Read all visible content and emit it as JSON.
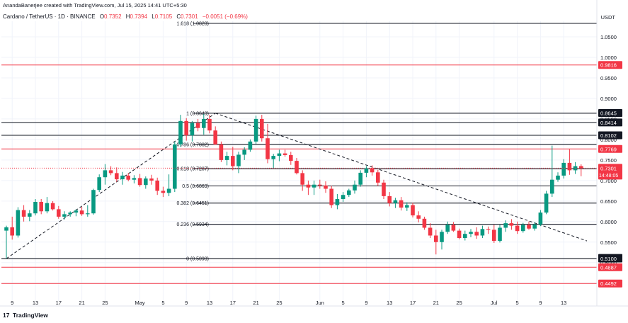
{
  "header": {
    "credit": "AnandaBanerjee created with TradingView.com, Jul 15, 2025 14:41 UTC+5:30",
    "symbol": "Cardano / TetherUS · 1D · BINANCE",
    "ohlc": [
      {
        "label": "O",
        "value": "0.7352"
      },
      {
        "label": "H",
        "value": "0.7394"
      },
      {
        "label": "L",
        "value": "0.7105"
      },
      {
        "label": "C",
        "value": "0.7301"
      },
      {
        "label": "",
        "value": "−0.0051 (−0.69%)"
      }
    ],
    "currency": "USDT"
  },
  "brand": {
    "name": "TradingView",
    "logo_glyph": "17"
  },
  "chart_data": {
    "type": "candlestick",
    "symbol": "ADA/USDT",
    "ylim": [
      0.42,
      1.1
    ],
    "colors": {
      "up": "#089981",
      "down": "#f23645",
      "fib_line": "#131722",
      "hline": "#f23645",
      "trend": "#131722"
    },
    "x_ticks": [
      {
        "i": 1,
        "label": "9"
      },
      {
        "i": 5,
        "label": "13"
      },
      {
        "i": 9,
        "label": "17"
      },
      {
        "i": 13,
        "label": "21"
      },
      {
        "i": 17,
        "label": "25"
      },
      {
        "i": 23,
        "label": "May"
      },
      {
        "i": 27,
        "label": "5"
      },
      {
        "i": 31,
        "label": "9"
      },
      {
        "i": 35,
        "label": "13"
      },
      {
        "i": 39,
        "label": "17"
      },
      {
        "i": 43,
        "label": "21"
      },
      {
        "i": 47,
        "label": "25"
      },
      {
        "i": 54,
        "label": "Jun"
      },
      {
        "i": 58,
        "label": "5"
      },
      {
        "i": 62,
        "label": "9"
      },
      {
        "i": 66,
        "label": "13"
      },
      {
        "i": 70,
        "label": "17"
      },
      {
        "i": 74,
        "label": "21"
      },
      {
        "i": 78,
        "label": "25"
      },
      {
        "i": 84,
        "label": "Jul"
      },
      {
        "i": 88,
        "label": "5"
      },
      {
        "i": 92,
        "label": "9"
      },
      {
        "i": 96,
        "label": "13"
      }
    ],
    "y_ticks": [
      "1.0500",
      "1.0000",
      "0.9500",
      "0.9000",
      "0.8500",
      "0.8000",
      "0.7500",
      "0.7000",
      "0.6500",
      "0.6000",
      "0.5500",
      "0.5000",
      "0.4500"
    ],
    "y_tick_values": [
      1.05,
      1.0,
      0.95,
      0.9,
      0.85,
      0.8,
      0.75,
      0.7,
      0.65,
      0.6,
      0.55,
      0.5,
      0.45
    ],
    "fib_levels": [
      {
        "label": "1.618 (1.0828)",
        "value": 1.0828
      },
      {
        "label": "1 (0.8640)",
        "value": 0.864
      },
      {
        "label": "0.786 (0.7882)",
        "value": 0.7882
      },
      {
        "label": "0.618 (0.7287)",
        "value": 0.7287
      },
      {
        "label": "0.5 (0.6869)",
        "value": 0.6869
      },
      {
        "label": "0.382 (0.6451)",
        "value": 0.6451
      },
      {
        "label": "0.236 (0.5934)",
        "value": 0.5934
      },
      {
        "label": "0 (0.5098)",
        "value": 0.5098
      }
    ],
    "horizontal_lines": [
      {
        "value": 0.9816,
        "color": "#f23645"
      },
      {
        "value": 0.8414,
        "color": "#131722"
      },
      {
        "value": 0.8102,
        "color": "#131722"
      },
      {
        "value": 0.7769,
        "color": "#f23645"
      },
      {
        "value": 0.4887,
        "color": "#f23645"
      },
      {
        "value": 0.4492,
        "color": "#f23645"
      }
    ],
    "price_labels": [
      {
        "text": "0.9816",
        "value": 0.9816,
        "bg": "#f23645",
        "fg": "#ffffff"
      },
      {
        "text": "0.8645",
        "value": 0.8645,
        "bg": "#131722",
        "fg": "#ffffff"
      },
      {
        "text": "0.8414",
        "value": 0.8414,
        "bg": "#131722",
        "fg": "#ffffff"
      },
      {
        "text": "0.8102",
        "value": 0.8102,
        "bg": "#131722",
        "fg": "#ffffff"
      },
      {
        "text": "0.7769",
        "value": 0.7769,
        "bg": "#f23645",
        "fg": "#ffffff"
      },
      {
        "text": "0.5116",
        "value": 0.5116,
        "bg": "#131722",
        "fg": "#ffffff"
      },
      {
        "text": "0.5100",
        "value": 0.51,
        "bg": "#131722",
        "fg": "#ffffff"
      },
      {
        "text": "0.4887",
        "value": 0.4887,
        "bg": "#f23645",
        "fg": "#ffffff"
      },
      {
        "text": "0.4492",
        "value": 0.4492,
        "bg": "#f23645",
        "fg": "#ffffff"
      }
    ],
    "last_price": {
      "value": 0.7301,
      "text": "0.7301",
      "countdown": "14:48:05",
      "color": "#f23645"
    },
    "trendlines": [
      {
        "from": [
          0,
          0.5098
        ],
        "to": [
          36,
          0.864
        ],
        "style": "dashed"
      },
      {
        "from": [
          36,
          0.864
        ],
        "to": [
          100,
          0.553
        ],
        "style": "dashed"
      }
    ],
    "candles": [
      {
        "o": 0.578,
        "h": 0.59,
        "l": 0.51,
        "c": 0.586
      },
      {
        "o": 0.586,
        "h": 0.612,
        "l": 0.556,
        "c": 0.566
      },
      {
        "o": 0.566,
        "h": 0.635,
        "l": 0.561,
        "c": 0.628
      },
      {
        "o": 0.628,
        "h": 0.64,
        "l": 0.6,
        "c": 0.612
      },
      {
        "o": 0.612,
        "h": 0.628,
        "l": 0.601,
        "c": 0.62
      },
      {
        "o": 0.62,
        "h": 0.655,
        "l": 0.615,
        "c": 0.648
      },
      {
        "o": 0.648,
        "h": 0.655,
        "l": 0.618,
        "c": 0.625
      },
      {
        "o": 0.625,
        "h": 0.66,
        "l": 0.62,
        "c": 0.645
      },
      {
        "o": 0.645,
        "h": 0.65,
        "l": 0.627,
        "c": 0.63
      },
      {
        "o": 0.63,
        "h": 0.638,
        "l": 0.607,
        "c": 0.612
      },
      {
        "o": 0.612,
        "h": 0.625,
        "l": 0.605,
        "c": 0.618
      },
      {
        "o": 0.618,
        "h": 0.625,
        "l": 0.612,
        "c": 0.622
      },
      {
        "o": 0.622,
        "h": 0.63,
        "l": 0.613,
        "c": 0.627
      },
      {
        "o": 0.627,
        "h": 0.636,
        "l": 0.614,
        "c": 0.618
      },
      {
        "o": 0.618,
        "h": 0.64,
        "l": 0.612,
        "c": 0.62
      },
      {
        "o": 0.62,
        "h": 0.68,
        "l": 0.617,
        "c": 0.677
      },
      {
        "o": 0.677,
        "h": 0.715,
        "l": 0.672,
        "c": 0.708
      },
      {
        "o": 0.708,
        "h": 0.74,
        "l": 0.69,
        "c": 0.725
      },
      {
        "o": 0.725,
        "h": 0.735,
        "l": 0.713,
        "c": 0.718
      },
      {
        "o": 0.718,
        "h": 0.732,
        "l": 0.697,
        "c": 0.703
      },
      {
        "o": 0.703,
        "h": 0.721,
        "l": 0.69,
        "c": 0.712
      },
      {
        "o": 0.712,
        "h": 0.718,
        "l": 0.698,
        "c": 0.702
      },
      {
        "o": 0.702,
        "h": 0.713,
        "l": 0.693,
        "c": 0.706
      },
      {
        "o": 0.706,
        "h": 0.716,
        "l": 0.685,
        "c": 0.689
      },
      {
        "o": 0.689,
        "h": 0.71,
        "l": 0.68,
        "c": 0.705
      },
      {
        "o": 0.705,
        "h": 0.714,
        "l": 0.69,
        "c": 0.7
      },
      {
        "o": 0.7,
        "h": 0.707,
        "l": 0.665,
        "c": 0.675
      },
      {
        "o": 0.675,
        "h": 0.685,
        "l": 0.66,
        "c": 0.67
      },
      {
        "o": 0.67,
        "h": 0.715,
        "l": 0.662,
        "c": 0.68
      },
      {
        "o": 0.68,
        "h": 0.795,
        "l": 0.672,
        "c": 0.788
      },
      {
        "o": 0.788,
        "h": 0.86,
        "l": 0.782,
        "c": 0.845
      },
      {
        "o": 0.845,
        "h": 0.852,
        "l": 0.797,
        "c": 0.81
      },
      {
        "o": 0.81,
        "h": 0.845,
        "l": 0.795,
        "c": 0.84
      },
      {
        "o": 0.84,
        "h": 0.85,
        "l": 0.82,
        "c": 0.828
      },
      {
        "o": 0.828,
        "h": 0.862,
        "l": 0.812,
        "c": 0.85
      },
      {
        "o": 0.85,
        "h": 0.86,
        "l": 0.815,
        "c": 0.822
      },
      {
        "o": 0.822,
        "h": 0.832,
        "l": 0.787,
        "c": 0.788
      },
      {
        "o": 0.788,
        "h": 0.795,
        "l": 0.745,
        "c": 0.75
      },
      {
        "o": 0.75,
        "h": 0.77,
        "l": 0.737,
        "c": 0.76
      },
      {
        "o": 0.76,
        "h": 0.782,
        "l": 0.725,
        "c": 0.735
      },
      {
        "o": 0.735,
        "h": 0.77,
        "l": 0.718,
        "c": 0.763
      },
      {
        "o": 0.763,
        "h": 0.781,
        "l": 0.75,
        "c": 0.775
      },
      {
        "o": 0.775,
        "h": 0.8,
        "l": 0.77,
        "c": 0.795
      },
      {
        "o": 0.795,
        "h": 0.858,
        "l": 0.789,
        "c": 0.85
      },
      {
        "o": 0.85,
        "h": 0.86,
        "l": 0.795,
        "c": 0.803
      },
      {
        "o": 0.803,
        "h": 0.838,
        "l": 0.742,
        "c": 0.752
      },
      {
        "o": 0.752,
        "h": 0.765,
        "l": 0.73,
        "c": 0.76
      },
      {
        "o": 0.76,
        "h": 0.775,
        "l": 0.747,
        "c": 0.766
      },
      {
        "o": 0.766,
        "h": 0.775,
        "l": 0.758,
        "c": 0.762
      },
      {
        "o": 0.762,
        "h": 0.77,
        "l": 0.738,
        "c": 0.748
      },
      {
        "o": 0.748,
        "h": 0.755,
        "l": 0.715,
        "c": 0.718
      },
      {
        "o": 0.718,
        "h": 0.725,
        "l": 0.675,
        "c": 0.69
      },
      {
        "o": 0.69,
        "h": 0.7,
        "l": 0.665,
        "c": 0.683
      },
      {
        "o": 0.683,
        "h": 0.7,
        "l": 0.665,
        "c": 0.69
      },
      {
        "o": 0.69,
        "h": 0.702,
        "l": 0.68,
        "c": 0.688
      },
      {
        "o": 0.688,
        "h": 0.698,
        "l": 0.67,
        "c": 0.68
      },
      {
        "o": 0.68,
        "h": 0.687,
        "l": 0.633,
        "c": 0.64
      },
      {
        "o": 0.64,
        "h": 0.667,
        "l": 0.63,
        "c": 0.655
      },
      {
        "o": 0.655,
        "h": 0.672,
        "l": 0.648,
        "c": 0.665
      },
      {
        "o": 0.665,
        "h": 0.68,
        "l": 0.66,
        "c": 0.676
      },
      {
        "o": 0.676,
        "h": 0.7,
        "l": 0.668,
        "c": 0.69
      },
      {
        "o": 0.69,
        "h": 0.725,
        "l": 0.685,
        "c": 0.719
      },
      {
        "o": 0.719,
        "h": 0.735,
        "l": 0.708,
        "c": 0.73
      },
      {
        "o": 0.73,
        "h": 0.737,
        "l": 0.712,
        "c": 0.72
      },
      {
        "o": 0.72,
        "h": 0.726,
        "l": 0.687,
        "c": 0.695
      },
      {
        "o": 0.695,
        "h": 0.702,
        "l": 0.655,
        "c": 0.662
      },
      {
        "o": 0.662,
        "h": 0.672,
        "l": 0.637,
        "c": 0.645
      },
      {
        "o": 0.645,
        "h": 0.658,
        "l": 0.633,
        "c": 0.652
      },
      {
        "o": 0.652,
        "h": 0.66,
        "l": 0.627,
        "c": 0.634
      },
      {
        "o": 0.634,
        "h": 0.647,
        "l": 0.626,
        "c": 0.64
      },
      {
        "o": 0.64,
        "h": 0.646,
        "l": 0.61,
        "c": 0.615
      },
      {
        "o": 0.615,
        "h": 0.625,
        "l": 0.598,
        "c": 0.607
      },
      {
        "o": 0.607,
        "h": 0.612,
        "l": 0.58,
        "c": 0.585
      },
      {
        "o": 0.585,
        "h": 0.596,
        "l": 0.56,
        "c": 0.566
      },
      {
        "o": 0.566,
        "h": 0.58,
        "l": 0.52,
        "c": 0.55
      },
      {
        "o": 0.55,
        "h": 0.58,
        "l": 0.532,
        "c": 0.575
      },
      {
        "o": 0.575,
        "h": 0.6,
        "l": 0.57,
        "c": 0.592
      },
      {
        "o": 0.592,
        "h": 0.599,
        "l": 0.575,
        "c": 0.578
      },
      {
        "o": 0.578,
        "h": 0.583,
        "l": 0.557,
        "c": 0.56
      },
      {
        "o": 0.56,
        "h": 0.578,
        "l": 0.554,
        "c": 0.57
      },
      {
        "o": 0.57,
        "h": 0.582,
        "l": 0.562,
        "c": 0.575
      },
      {
        "o": 0.575,
        "h": 0.586,
        "l": 0.558,
        "c": 0.566
      },
      {
        "o": 0.566,
        "h": 0.59,
        "l": 0.56,
        "c": 0.582
      },
      {
        "o": 0.582,
        "h": 0.588,
        "l": 0.57,
        "c": 0.58
      },
      {
        "o": 0.58,
        "h": 0.592,
        "l": 0.548,
        "c": 0.553
      },
      {
        "o": 0.553,
        "h": 0.592,
        "l": 0.549,
        "c": 0.585
      },
      {
        "o": 0.585,
        "h": 0.603,
        "l": 0.575,
        "c": 0.596
      },
      {
        "o": 0.596,
        "h": 0.606,
        "l": 0.58,
        "c": 0.59
      },
      {
        "o": 0.59,
        "h": 0.6,
        "l": 0.57,
        "c": 0.577
      },
      {
        "o": 0.577,
        "h": 0.597,
        "l": 0.573,
        "c": 0.592
      },
      {
        "o": 0.592,
        "h": 0.6,
        "l": 0.58,
        "c": 0.583
      },
      {
        "o": 0.583,
        "h": 0.598,
        "l": 0.578,
        "c": 0.593
      },
      {
        "o": 0.593,
        "h": 0.628,
        "l": 0.589,
        "c": 0.622
      },
      {
        "o": 0.622,
        "h": 0.675,
        "l": 0.618,
        "c": 0.668
      },
      {
        "o": 0.668,
        "h": 0.785,
        "l": 0.66,
        "c": 0.702
      },
      {
        "o": 0.702,
        "h": 0.72,
        "l": 0.697,
        "c": 0.712
      },
      {
        "o": 0.712,
        "h": 0.752,
        "l": 0.705,
        "c": 0.743
      },
      {
        "o": 0.743,
        "h": 0.776,
        "l": 0.714,
        "c": 0.725
      },
      {
        "o": 0.725,
        "h": 0.745,
        "l": 0.716,
        "c": 0.735
      },
      {
        "o": 0.7352,
        "h": 0.7394,
        "l": 0.7105,
        "c": 0.7301
      }
    ]
  }
}
